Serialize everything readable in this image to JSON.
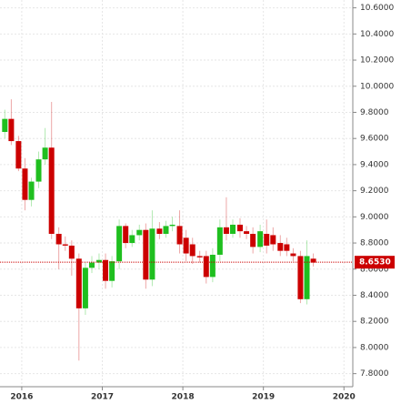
{
  "chart_data": {
    "type": "candlestick",
    "x": [
      2015.79,
      2015.87,
      2015.96,
      2016.04,
      2016.12,
      2016.21,
      2016.29,
      2016.37,
      2016.46,
      2016.54,
      2016.62,
      2016.71,
      2016.79,
      2016.87,
      2016.96,
      2017.04,
      2017.12,
      2017.21,
      2017.29,
      2017.37,
      2017.46,
      2017.54,
      2017.62,
      2017.71,
      2017.79,
      2017.87,
      2017.96,
      2018.04,
      2018.12,
      2018.21,
      2018.29,
      2018.37,
      2018.46,
      2018.54,
      2018.62,
      2018.71,
      2018.79,
      2018.87,
      2018.96,
      2019.04,
      2019.12,
      2019.21,
      2019.29,
      2019.37,
      2019.46,
      2019.54,
      2019.62
    ],
    "open": [
      9.65,
      9.75,
      9.58,
      9.37,
      9.13,
      9.27,
      9.44,
      9.53,
      8.87,
      8.79,
      8.78,
      8.68,
      8.3,
      8.61,
      8.65,
      8.67,
      8.51,
      8.66,
      8.93,
      8.8,
      8.86,
      8.9,
      8.52,
      8.91,
      8.87,
      8.93,
      8.93,
      8.84,
      8.79,
      8.7,
      8.7,
      8.54,
      8.71,
      8.92,
      8.87,
      8.94,
      8.89,
      8.87,
      8.77,
      8.87,
      8.86,
      8.8,
      8.79,
      8.72,
      8.7,
      8.37,
      8.68
    ],
    "high": [
      9.82,
      9.9,
      9.62,
      9.45,
      9.3,
      9.5,
      9.68,
      9.88,
      8.92,
      8.85,
      8.82,
      8.72,
      8.65,
      8.7,
      8.72,
      8.72,
      8.7,
      8.98,
      8.95,
      8.9,
      8.94,
      8.95,
      9.05,
      8.96,
      8.97,
      9.0,
      9.05,
      8.9,
      8.84,
      8.74,
      8.74,
      8.76,
      8.98,
      9.15,
      8.98,
      8.99,
      8.93,
      8.92,
      8.94,
      8.98,
      8.92,
      8.86,
      8.84,
      8.76,
      8.74,
      8.82,
      8.72
    ],
    "low": [
      9.6,
      9.55,
      9.35,
      9.05,
      9.08,
      9.22,
      9.4,
      8.83,
      8.6,
      8.74,
      8.55,
      7.9,
      8.25,
      8.57,
      8.6,
      8.45,
      8.46,
      8.6,
      8.76,
      8.77,
      8.82,
      8.45,
      8.47,
      8.83,
      8.84,
      8.89,
      8.72,
      8.66,
      8.64,
      8.65,
      8.49,
      8.5,
      8.66,
      8.82,
      8.84,
      8.84,
      8.83,
      8.72,
      8.73,
      8.72,
      8.74,
      8.7,
      8.7,
      8.66,
      8.34,
      8.33,
      8.62
    ],
    "close": [
      9.75,
      9.58,
      9.37,
      9.13,
      9.27,
      9.44,
      9.53,
      8.87,
      8.79,
      8.78,
      8.68,
      8.3,
      8.61,
      8.65,
      8.67,
      8.51,
      8.66,
      8.93,
      8.8,
      8.86,
      8.9,
      8.52,
      8.91,
      8.87,
      8.93,
      8.94,
      8.79,
      8.72,
      8.7,
      8.69,
      8.54,
      8.71,
      8.92,
      8.87,
      8.94,
      8.89,
      8.87,
      8.77,
      8.89,
      8.78,
      8.79,
      8.74,
      8.74,
      8.7,
      8.37,
      8.7,
      8.65
    ],
    "up_color": "#1fbf1f",
    "down_color": "#cc0000",
    "xlim": [
      2015.73,
      2020.11
    ],
    "xticks": [
      2016,
      2017,
      2018,
      2019,
      2020
    ],
    "ylim": [
      7.7,
      10.66
    ],
    "yticks": [
      {
        "value": 7.8,
        "label": "7.8000"
      },
      {
        "value": 8.0,
        "label": "8.0000"
      },
      {
        "value": 8.2,
        "label": "8.2000"
      },
      {
        "value": 8.4,
        "label": "8.4000"
      },
      {
        "value": 8.6,
        "label": "8.6000"
      },
      {
        "value": 8.8,
        "label": "8.8000"
      },
      {
        "value": 9.0,
        "label": "9.0000"
      },
      {
        "value": 9.2,
        "label": "9.2000"
      },
      {
        "value": 9.4,
        "label": "9.4000"
      },
      {
        "value": 9.6,
        "label": "9.6000"
      },
      {
        "value": 9.8,
        "label": "9.8000"
      },
      {
        "value": 10.0,
        "label": "10.0000"
      },
      {
        "value": 10.2,
        "label": "10.2000"
      },
      {
        "value": 10.4,
        "label": "10.4000"
      },
      {
        "value": 10.6,
        "label": "10.6000"
      }
    ],
    "current_price": {
      "value": 8.653,
      "label": "8.6530",
      "color": "#cc0000"
    },
    "grid": true
  }
}
